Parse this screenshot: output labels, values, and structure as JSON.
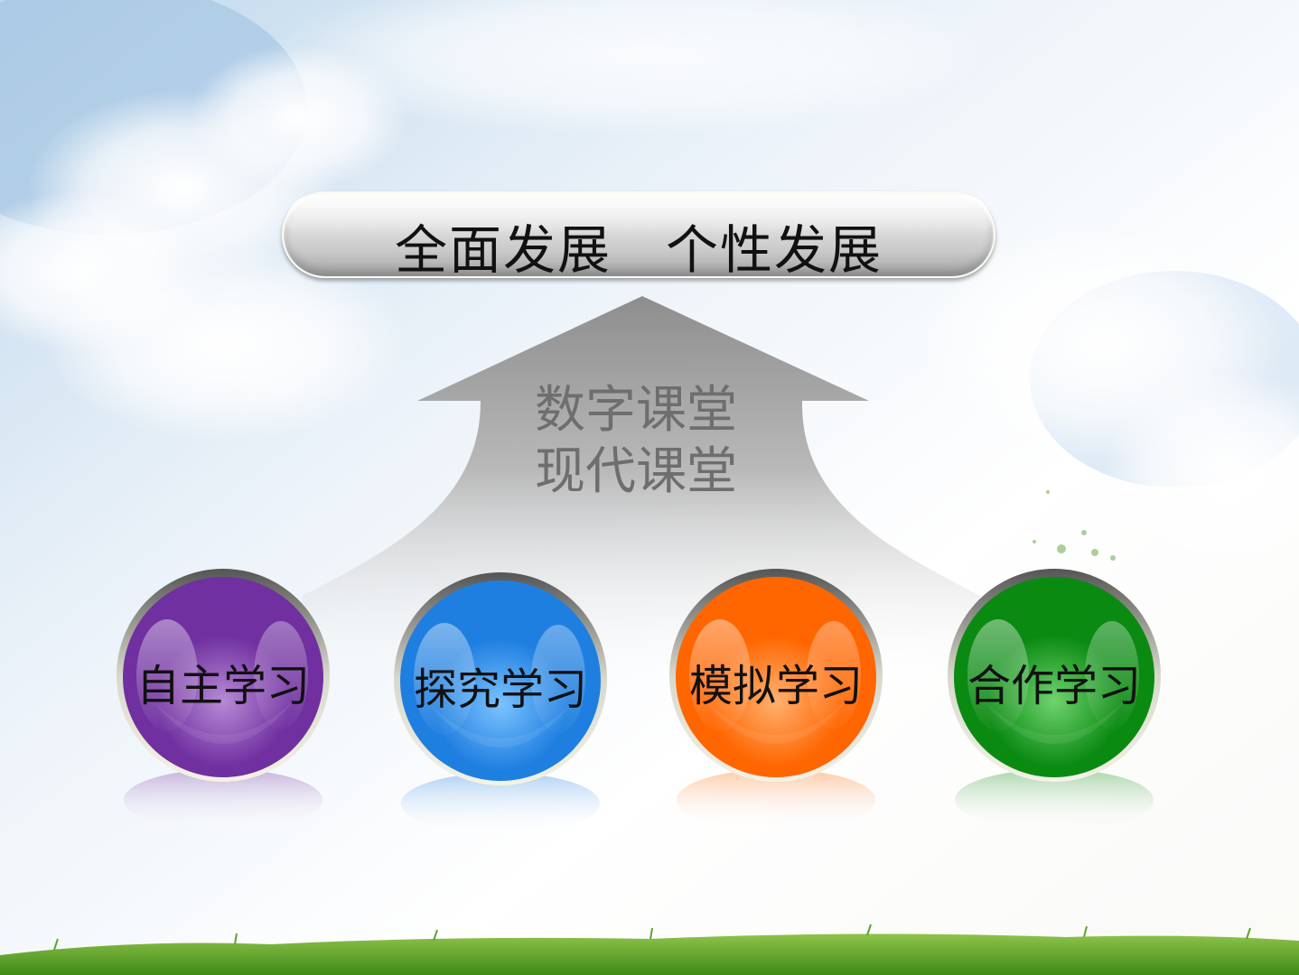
{
  "slide": {
    "top_banner": {
      "text": "全面发展　个性发展"
    },
    "arrow": {
      "line1": "数字课堂",
      "line2": "现代课堂"
    },
    "balls": [
      {
        "label": "自主学习",
        "color": "#7030A0",
        "highlight": "#b78ad6"
      },
      {
        "label": "探究学习",
        "color": "#1f7fe0",
        "highlight": "#7cc2ff"
      },
      {
        "label": "模拟学习",
        "color": "#ff6600",
        "highlight": "#ffb070"
      },
      {
        "label": "合作学习",
        "color": "#0b8a12",
        "highlight": "#6fd36f"
      }
    ]
  }
}
